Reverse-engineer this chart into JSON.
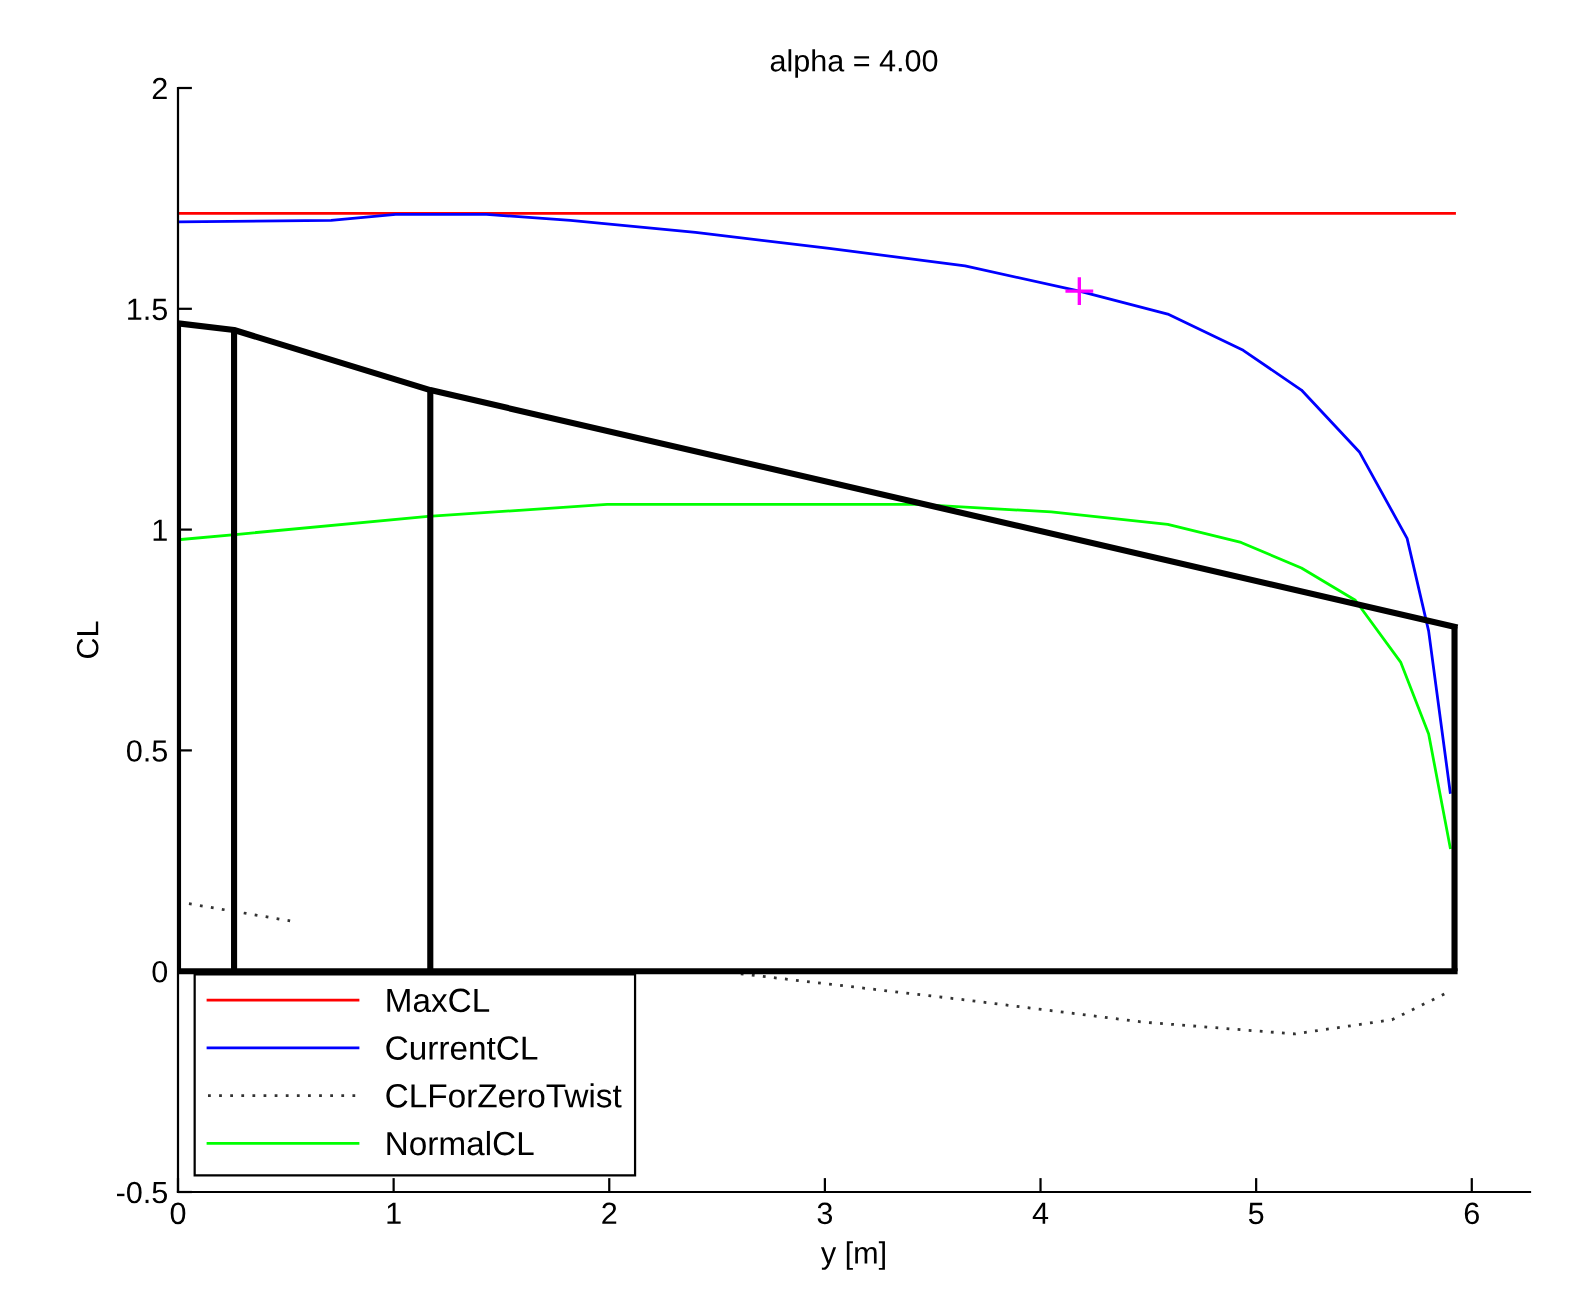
{
  "chart_data": {
    "type": "line",
    "title": "alpha = 4.00",
    "xlabel": "y [m]",
    "ylabel": "CL",
    "xlim": [
      0,
      6.27
    ],
    "xticks": [
      0,
      1,
      2,
      3,
      4,
      5,
      6
    ],
    "ylim": [
      -0.5,
      2
    ],
    "yticks": [
      -0.5,
      0,
      0.5,
      1,
      1.5,
      2
    ],
    "grid": false,
    "legend": "bottom left",
    "series": [
      {
        "name": "MaxCL",
        "color": "#ff0000",
        "x": [
          0,
          5.92
        ],
        "values": [
          1.716,
          1.716
        ]
      },
      {
        "name": "CurrentCL",
        "color": "#0000ff",
        "x": [
          0,
          0.71,
          1.01,
          1.43,
          1.82,
          2.4,
          3.02,
          3.65,
          4.18,
          4.59,
          4.94,
          5.21,
          5.48,
          5.7,
          5.8,
          5.9
        ],
        "values": [
          1.697,
          1.7,
          1.714,
          1.714,
          1.7,
          1.673,
          1.637,
          1.597,
          1.54,
          1.488,
          1.406,
          1.316,
          1.175,
          0.98,
          0.77,
          0.405
        ]
      },
      {
        "name": "CLForZeroTwist",
        "color": "#333333",
        "line_style": "dotted",
        "x": [
          0,
          0.52,
          1.5,
          2.61,
          3.65,
          4.47,
          5.18,
          5.63,
          5.9
        ],
        "values": [
          0.157,
          0.114,
          null,
          -0.006,
          -0.065,
          -0.115,
          -0.142,
          -0.11,
          -0.045
        ]
      },
      {
        "name": "NormalCL",
        "color": "#00ff00",
        "x": [
          0,
          0.29,
          1.16,
          1.99,
          3.43,
          4.05,
          4.59,
          4.93,
          5.21,
          5.46,
          5.67,
          5.8,
          5.9
        ],
        "values": [
          0.977,
          0.99,
          1.03,
          1.057,
          1.057,
          1.04,
          1.012,
          0.971,
          0.913,
          0.84,
          0.7,
          0.537,
          0.28
        ]
      },
      {
        "color": "#000000",
        "x": [
          0,
          0.26,
          1.17,
          5.92
        ],
        "values": [
          1.467,
          1.452,
          1.316,
          0.78
        ],
        "errors": [
          [
            0,
            1.467
          ],
          [
            0,
            1.452
          ],
          [
            0,
            1.316
          ],
          [
            0,
            0.78
          ]
        ]
      },
      {
        "color": "#000000",
        "x": [
          0,
          5.92
        ],
        "values": [
          0,
          0
        ]
      },
      {
        "type": "scatter",
        "color": "#ff00ff",
        "marker": "cross",
        "x": [
          4.18
        ],
        "values": [
          1.54
        ]
      }
    ]
  }
}
